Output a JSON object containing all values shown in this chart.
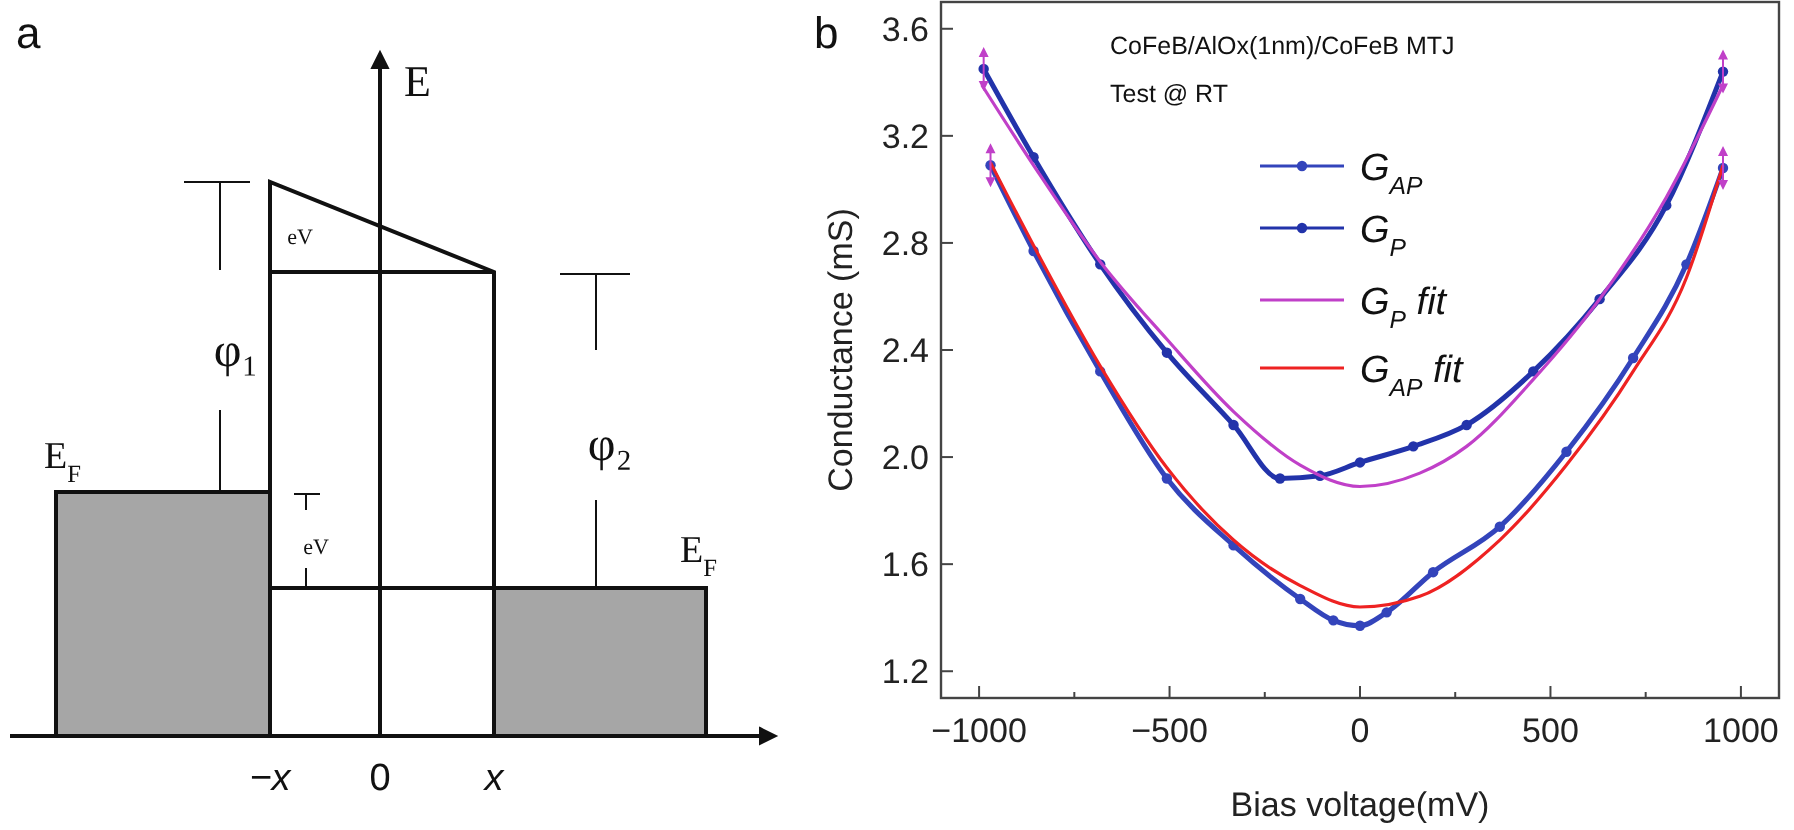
{
  "chart_data": [
    {
      "type": "other",
      "title": "a",
      "annotations": [
        "E",
        "φ₁",
        "φ₂",
        "E$_{F}$",
        "E$_{F}$",
        "eV",
        "eV",
        "−x",
        "0",
        "x"
      ]
    },
    {
      "type": "line",
      "title": "b",
      "subtitle": "CoFeB/AlOx(1nm)/CoFeB MTJ",
      "annotations": [
        "Test @ RT"
      ],
      "xlabel": "Bias voltage(mV)",
      "ylabel": "Conductance (mS)",
      "xlim": [
        -1100,
        1100
      ],
      "ylim": [
        1.1,
        3.7
      ],
      "xticks": [
        -1000,
        {
          "value": -750,
          "label": null
        },
        -500,
        {
          "value": -250,
          "label": null
        },
        0,
        {
          "value": 250,
          "label": null
        },
        500,
        {
          "value": 750,
          "label": null
        },
        1000
      ],
      "yticks": [
        1.2,
        1.6,
        {
          "value": 2,
          "label": "2.0"
        },
        2.4,
        2.8,
        3.2,
        3.6
      ],
      "grid": false,
      "legend": "top",
      "line_style": "solid",
      "series": [
        {
          "name": "G$_{AP}$",
          "color": "#3344bb",
          "marker": "circle",
          "x": [
            -970,
            -857,
            -682,
            -507,
            -332,
            -157,
            -70,
            0,
            70,
            192,
            367,
            542,
            717,
            857,
            953
          ],
          "values": [
            3.09,
            2.77,
            2.32,
            1.92,
            1.67,
            1.47,
            1.39,
            1.37,
            1.42,
            1.57,
            1.74,
            2.02,
            2.37,
            2.72,
            3.08
          ]
        },
        {
          "name": "G$_{P}$",
          "color": "#2233aa",
          "marker": "circle",
          "x": [
            -988,
            -857,
            -682,
            -507,
            -332,
            -210,
            -105,
            0,
            140,
            280,
            455,
            629,
            804,
            953
          ],
          "values": [
            3.45,
            3.12,
            2.72,
            2.39,
            2.12,
            1.92,
            1.93,
            1.98,
            2.04,
            2.12,
            2.32,
            2.59,
            2.94,
            3.44
          ]
        },
        {
          "name": "G$_{P}$ fit",
          "color": "#c040c8",
          "marker": "none",
          "x": [
            -993,
            -857,
            -682,
            -507,
            -332,
            -157,
            0,
            157,
            280,
            455,
            629,
            804,
            953
          ],
          "values": [
            3.39,
            3.09,
            2.73,
            2.44,
            2.17,
            1.97,
            1.89,
            1.94,
            2.04,
            2.29,
            2.59,
            2.97,
            3.39
          ]
        },
        {
          "name": "G$_{AP}$ fit",
          "color": "#ee2222",
          "marker": "none",
          "x": [
            -970,
            -857,
            -682,
            -507,
            -332,
            -157,
            0,
            157,
            367,
            542,
            717,
            857,
            953
          ],
          "values": [
            3.1,
            2.79,
            2.34,
            1.96,
            1.69,
            1.52,
            1.44,
            1.48,
            1.69,
            1.97,
            2.32,
            2.67,
            3.09
          ]
        }
      ]
    }
  ]
}
